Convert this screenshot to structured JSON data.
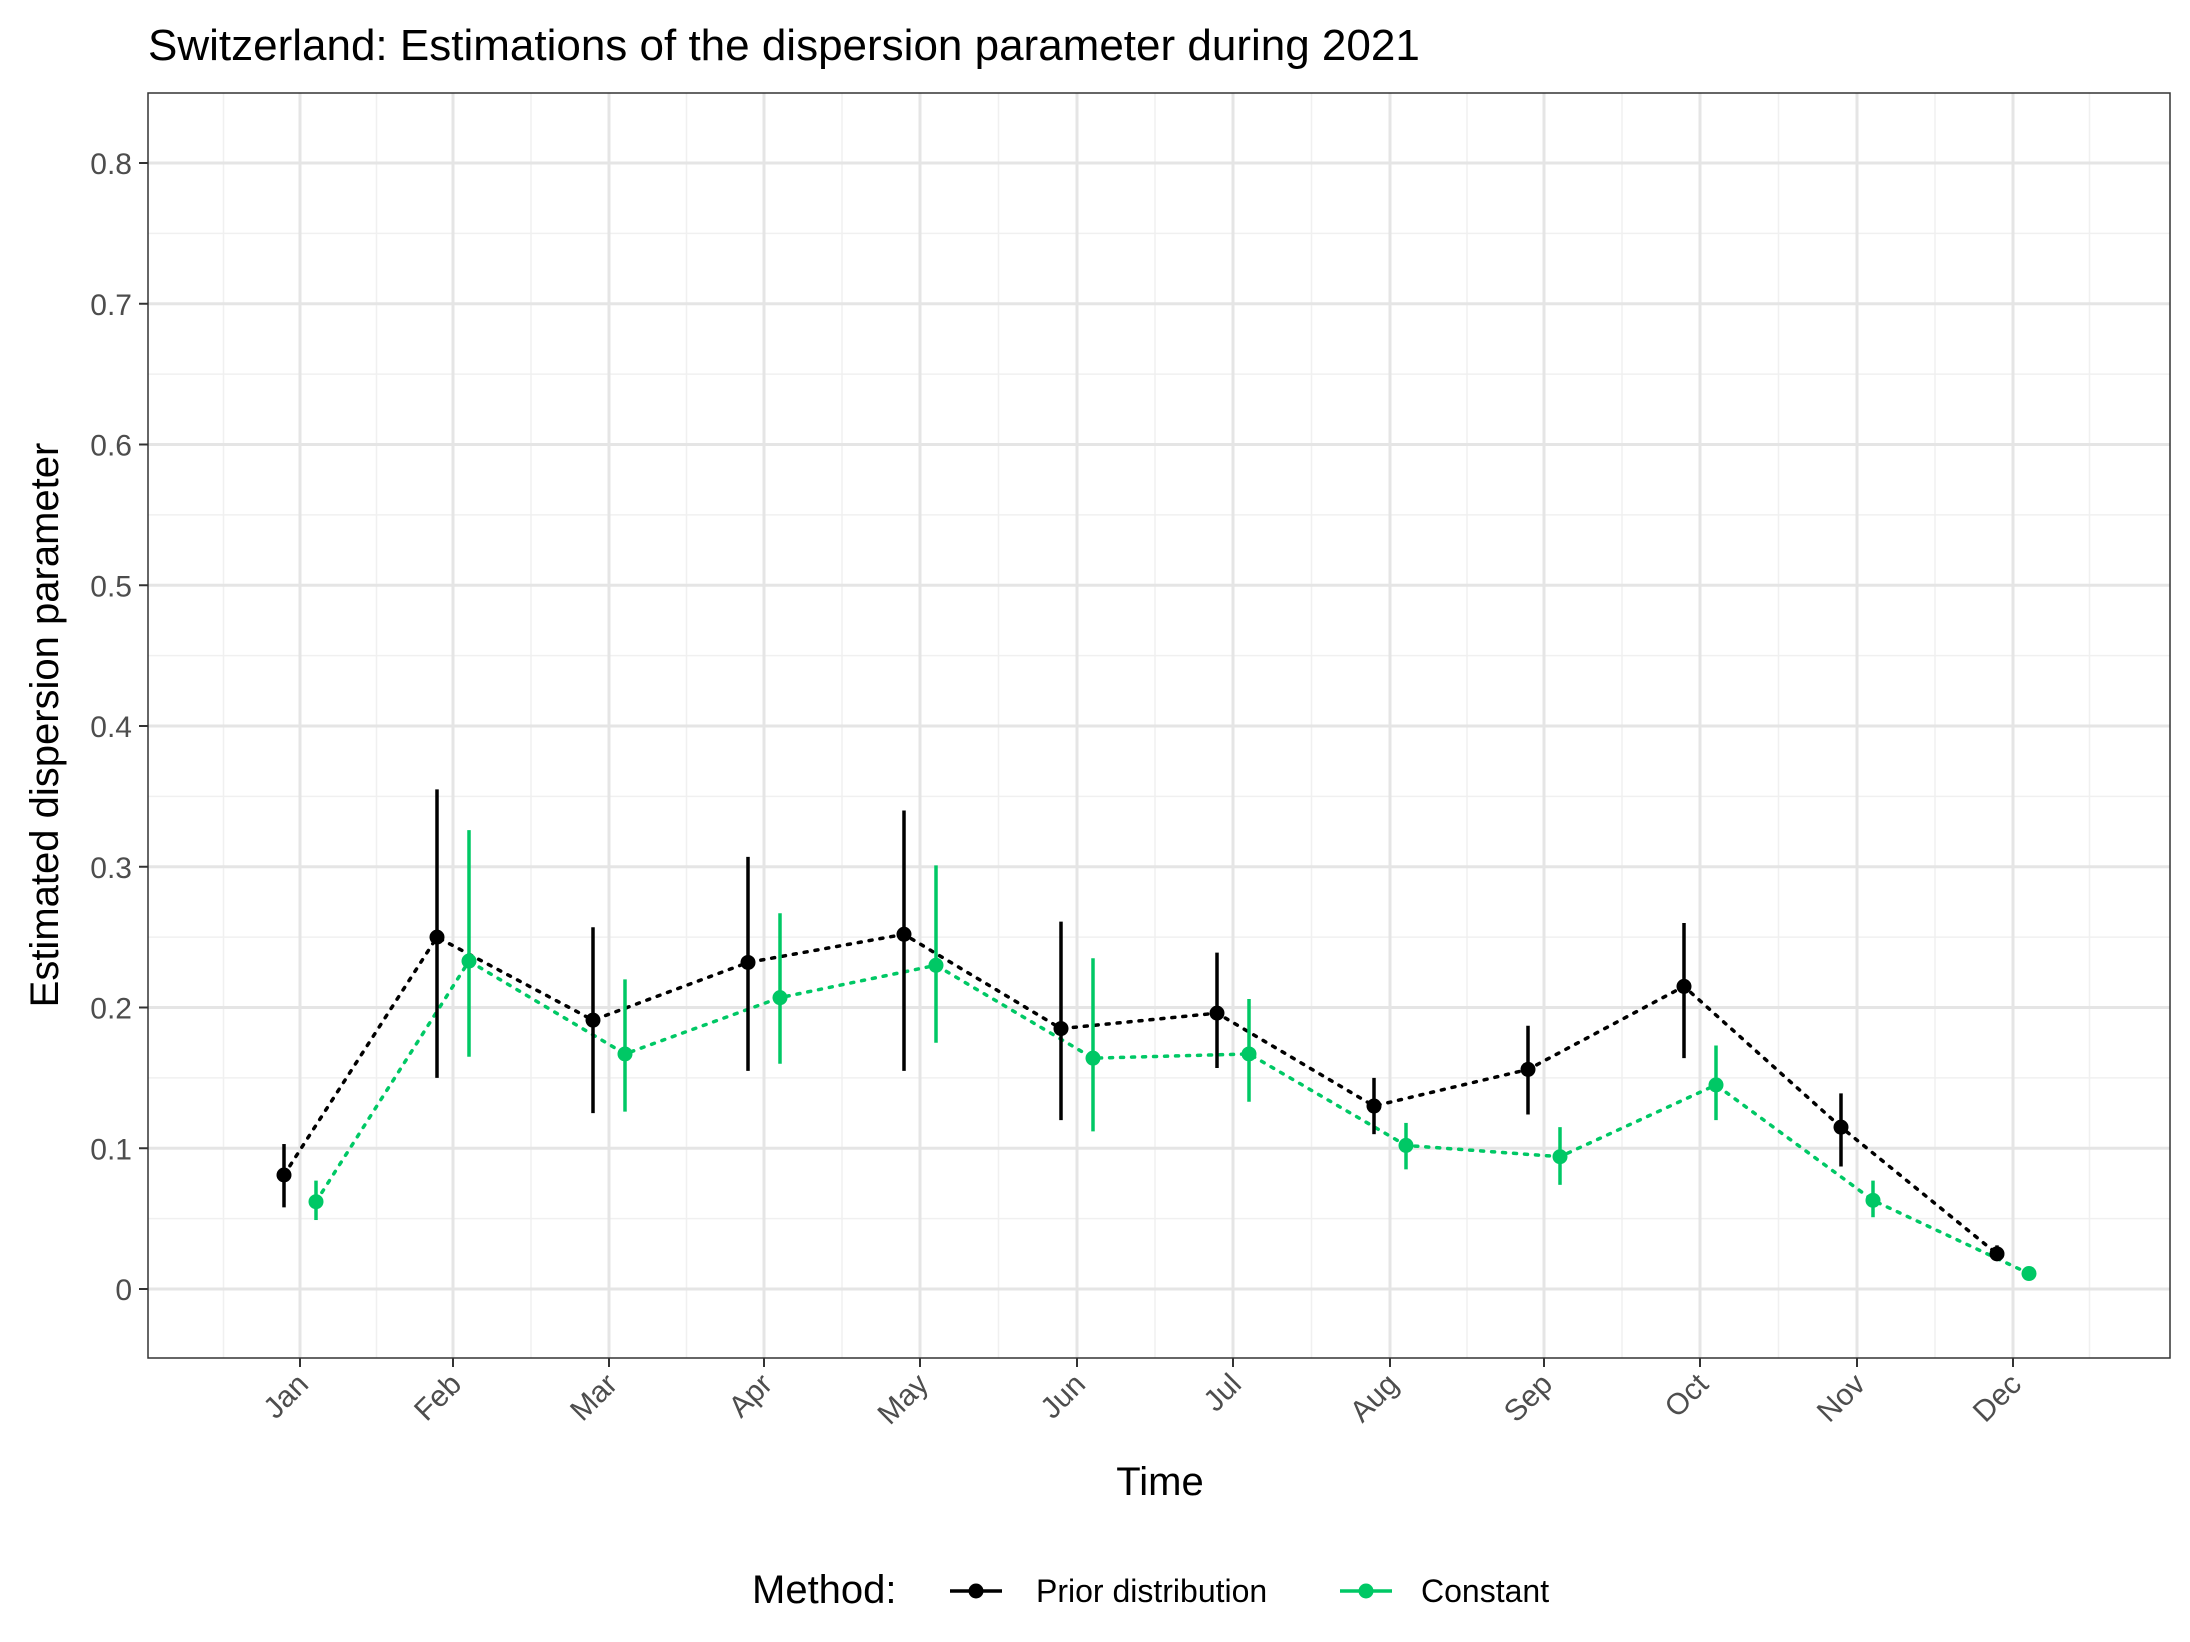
{
  "chart_data": {
    "type": "line",
    "title": "Switzerland: Estimations of the dispersion parameter during 2021",
    "xlabel": "Time",
    "ylabel": "Estimated dispersion parameter",
    "categories": [
      "Jan",
      "Feb",
      "Mar",
      "Apr",
      "May",
      "Jun",
      "Jul",
      "Aug",
      "Sep",
      "Oct",
      "Nov",
      "Dec"
    ],
    "ylim": [
      -0.047,
      0.85
    ],
    "yticks": [
      0,
      0.1,
      0.2,
      0.3,
      0.4,
      0.5,
      0.6,
      0.7,
      0.8
    ],
    "ytick_labels": [
      "0",
      "0.1",
      "0.2",
      "0.3",
      "0.4",
      "0.5",
      "0.6",
      "0.7",
      "0.8"
    ],
    "grid": true,
    "legend": {
      "title": "Method:",
      "placement": "bottom"
    },
    "series": [
      {
        "name": "Prior distribution",
        "color": "#000000",
        "values": [
          0.081,
          0.25,
          0.191,
          0.232,
          0.252,
          0.185,
          0.196,
          0.13,
          0.156,
          0.215,
          0.115,
          0.025
        ],
        "lower": [
          0.058,
          0.15,
          0.125,
          0.155,
          0.155,
          0.12,
          0.157,
          0.11,
          0.124,
          0.164,
          0.087,
          0.02
        ],
        "upper": [
          0.103,
          0.355,
          0.257,
          0.307,
          0.34,
          0.261,
          0.239,
          0.15,
          0.187,
          0.26,
          0.139,
          0.031
        ]
      },
      {
        "name": "Constant",
        "color": "#00c865",
        "values": [
          0.062,
          0.233,
          0.167,
          0.207,
          0.23,
          0.164,
          0.167,
          0.102,
          0.094,
          0.145,
          0.063,
          0.011
        ],
        "lower": [
          0.049,
          0.165,
          0.126,
          0.16,
          0.175,
          0.112,
          0.133,
          0.085,
          0.074,
          0.12,
          0.051,
          0.008
        ],
        "upper": [
          0.077,
          0.326,
          0.22,
          0.267,
          0.301,
          0.235,
          0.206,
          0.118,
          0.115,
          0.173,
          0.077,
          0.015
        ]
      }
    ]
  }
}
